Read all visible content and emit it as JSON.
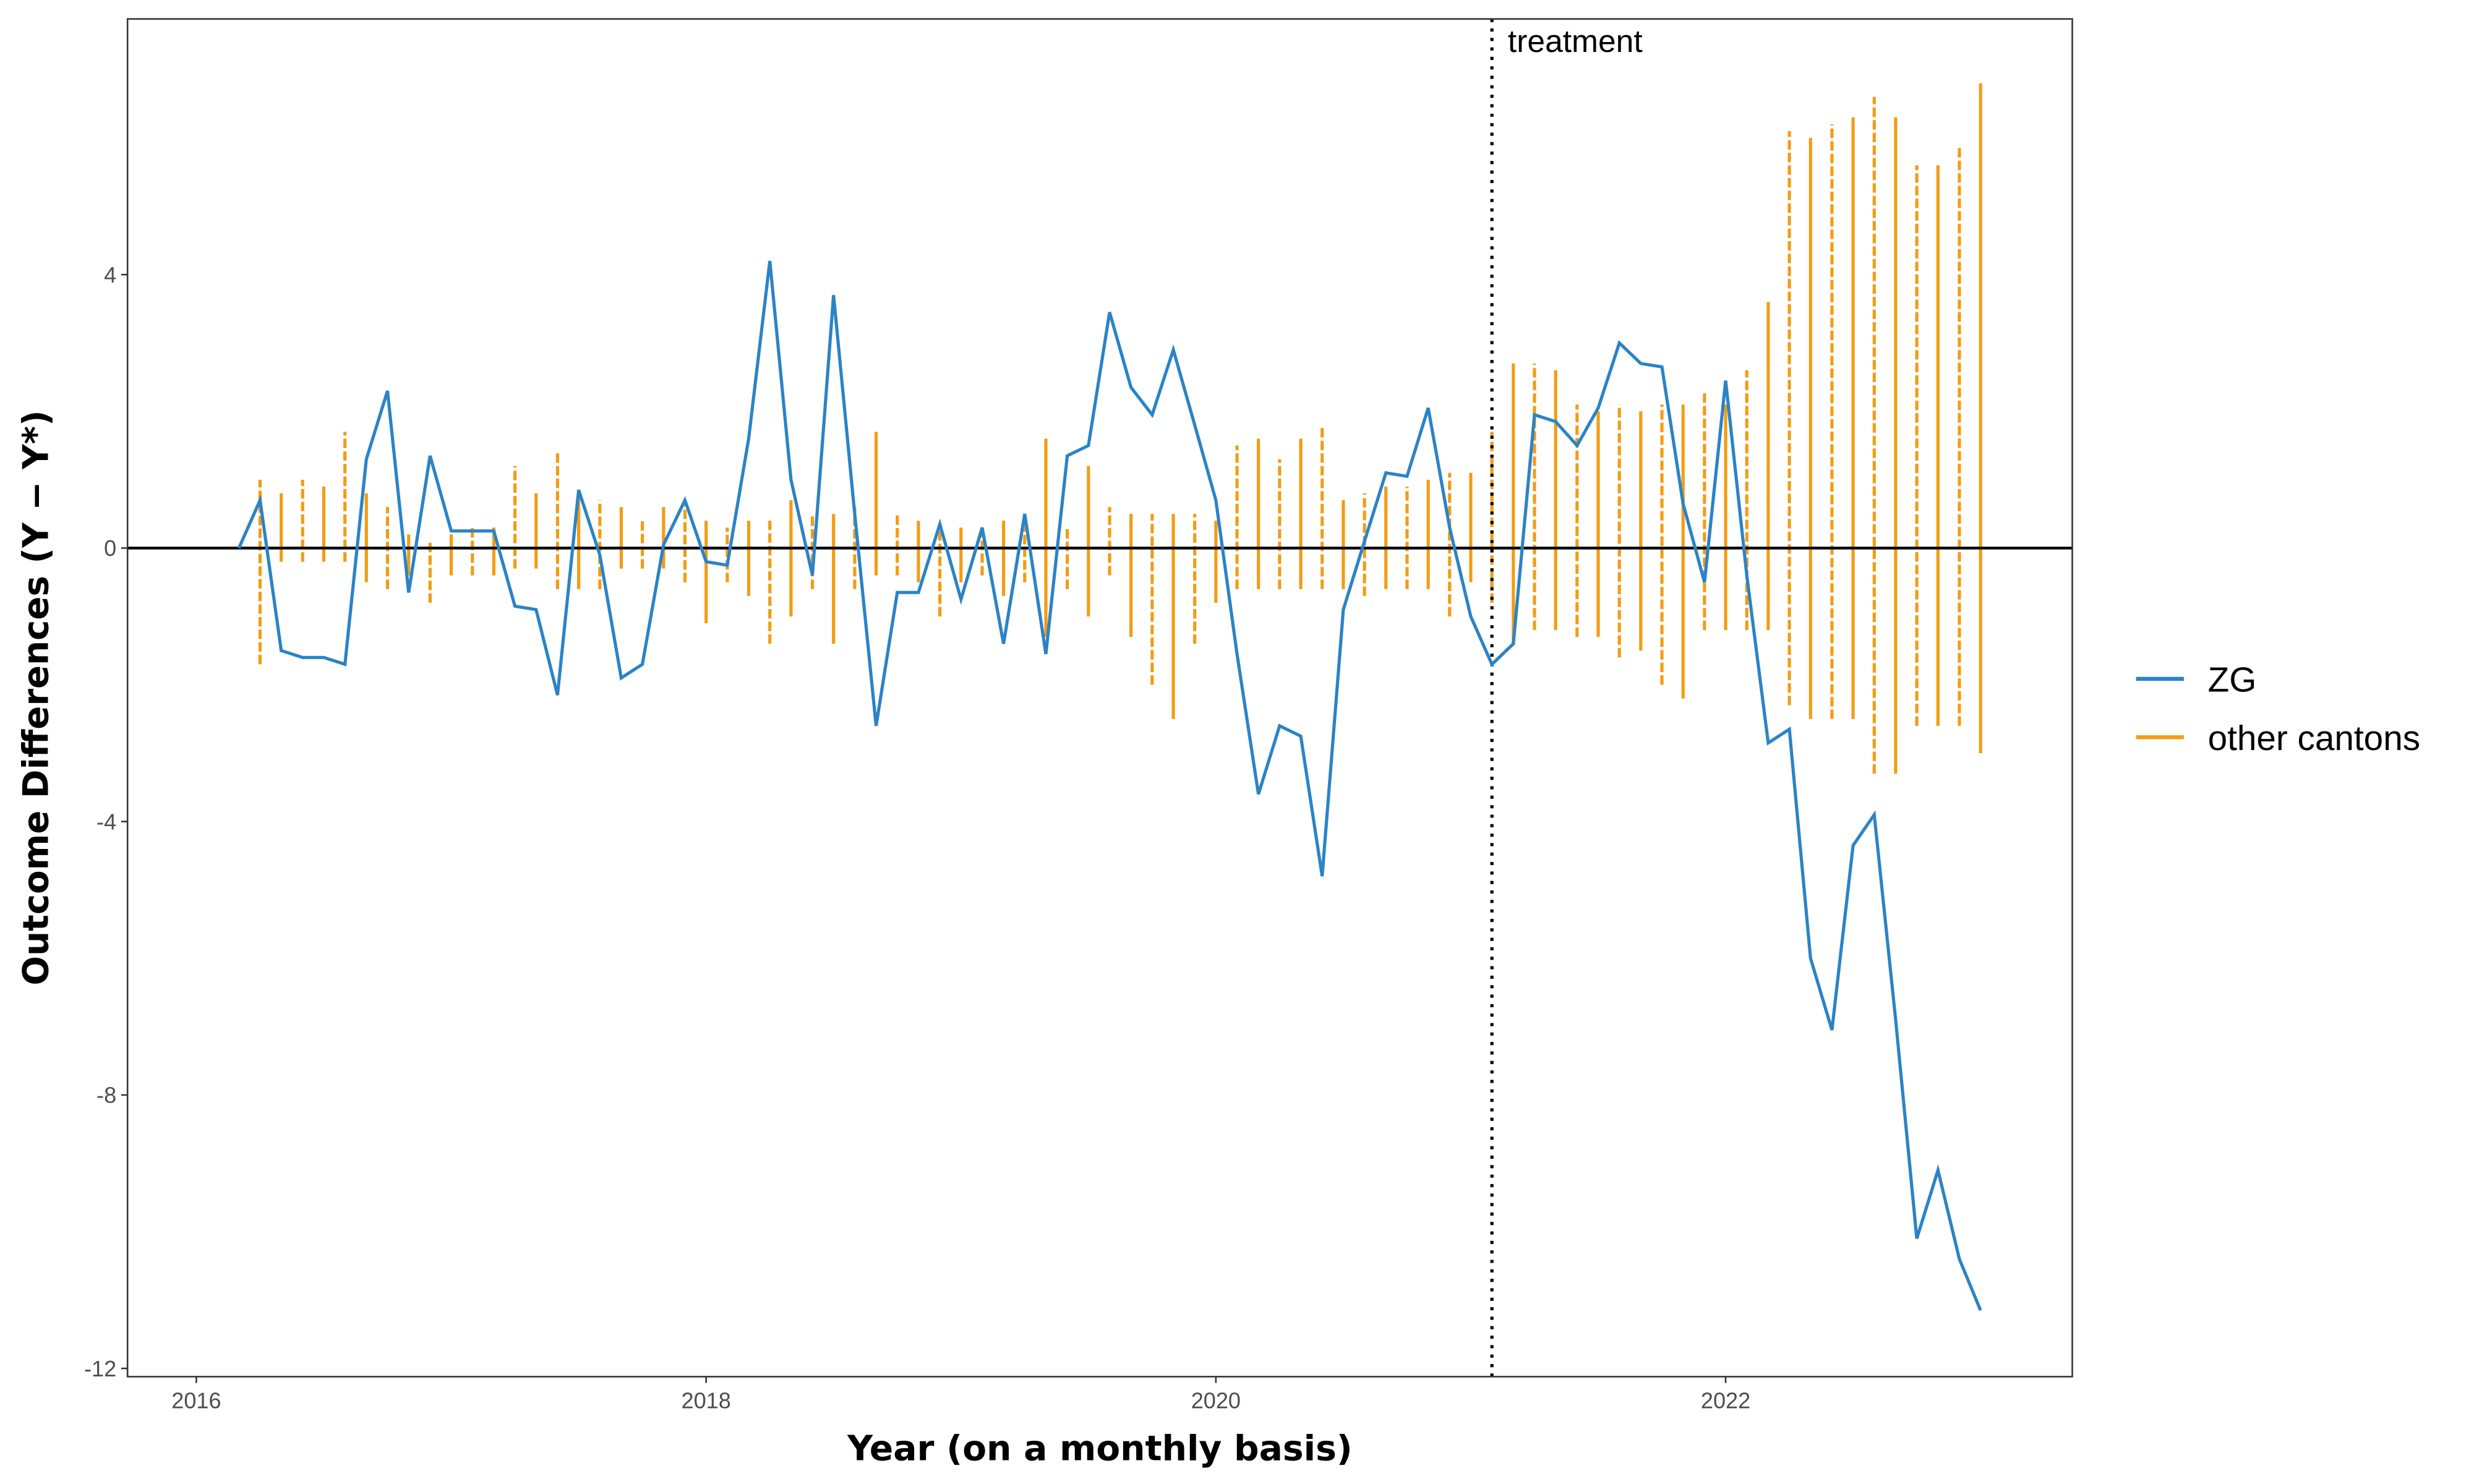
{
  "chart_data": {
    "type": "line",
    "x_label": "Year (on a monthly basis)",
    "y_label": "Outcome Differences (Y − Y*)",
    "xlim": [
      2015.73,
      2023.36
    ],
    "ylim": [
      -12.12,
      7.74
    ],
    "xticks": [
      2016,
      2018,
      2020,
      2022
    ],
    "yticks": [
      4,
      0,
      -4,
      -8,
      -12
    ],
    "hline": 0,
    "treatment": {
      "x": 2021.083,
      "label": "treatment"
    },
    "x": [
      2016.167,
      2016.25,
      2016.333,
      2016.417,
      2016.5,
      2016.583,
      2016.667,
      2016.75,
      2016.833,
      2016.917,
      2017,
      2017.083,
      2017.167,
      2017.25,
      2017.333,
      2017.417,
      2017.5,
      2017.583,
      2017.667,
      2017.75,
      2017.833,
      2017.917,
      2018,
      2018.083,
      2018.167,
      2018.25,
      2018.333,
      2018.417,
      2018.5,
      2018.583,
      2018.667,
      2018.75,
      2018.833,
      2018.917,
      2019,
      2019.083,
      2019.167,
      2019.25,
      2019.333,
      2019.417,
      2019.5,
      2019.583,
      2019.667,
      2019.75,
      2019.833,
      2019.917,
      2020,
      2020.083,
      2020.167,
      2020.25,
      2020.333,
      2020.417,
      2020.5,
      2020.583,
      2020.667,
      2020.75,
      2020.833,
      2020.917,
      2021,
      2021.083,
      2021.167,
      2021.25,
      2021.333,
      2021.417,
      2021.5,
      2021.583,
      2021.667,
      2021.75,
      2021.833,
      2021.917,
      2022,
      2022.083,
      2022.167,
      2022.25,
      2022.333,
      2022.417,
      2022.5,
      2022.583,
      2022.667,
      2022.75,
      2022.833,
      2022.917,
      2023
    ],
    "series": [
      {
        "name": "ZG",
        "color": "#2b83c6",
        "values": [
          0,
          0.7,
          -1.5,
          -1.6,
          -1.6,
          -1.7,
          1.3,
          2.3,
          -0.65,
          1.35,
          0.25,
          0.25,
          0.25,
          -0.85,
          -0.9,
          -2.15,
          0.85,
          -0.1,
          -1.9,
          -1.7,
          0.05,
          0.7,
          -0.2,
          -0.25,
          1.6,
          4.2,
          1.0,
          -0.4,
          3.7,
          0.5,
          -2.6,
          -0.65,
          -0.65,
          0.35,
          -0.75,
          0.3,
          -1.4,
          0.5,
          -1.55,
          1.35,
          1.5,
          3.45,
          2.35,
          1.95,
          2.9,
          1.8,
          0.7,
          -1.55,
          -3.6,
          -2.6,
          -2.75,
          -4.8,
          -0.9,
          0.1,
          1.1,
          1.05,
          2.05,
          0.3,
          -1.0,
          -1.7,
          -1.4,
          1.95,
          1.85,
          1.5,
          2.05,
          3.0,
          2.7,
          2.65,
          0.65,
          -0.5,
          2.45,
          -0.4,
          -2.85,
          -2.65,
          -6.0,
          -7.05,
          -4.35,
          -3.9,
          -6.9,
          -10.1,
          -9.1,
          -10.4,
          -11.15
        ]
      },
      {
        "name": "other cantons",
        "color": "#f39c12",
        "low": [
          null,
          -1.7,
          -0.2,
          -0.2,
          -0.2,
          -0.2,
          -0.5,
          -0.6,
          -0.4,
          -0.8,
          -0.4,
          -0.4,
          -0.4,
          -0.3,
          -0.3,
          -0.6,
          -0.6,
          -0.6,
          -0.3,
          -0.3,
          -0.3,
          -0.5,
          -1.1,
          -0.5,
          -0.7,
          -1.4,
          -1.0,
          -0.6,
          -1.4,
          -0.6,
          -0.4,
          -0.4,
          -0.5,
          -1.0,
          -0.5,
          -0.4,
          -0.7,
          -0.5,
          -1.3,
          -0.6,
          -1.0,
          -0.4,
          -1.3,
          -2.0,
          -2.5,
          -1.4,
          -0.8,
          -0.6,
          -0.6,
          -0.6,
          -0.6,
          -0.6,
          -0.6,
          -0.7,
          -0.6,
          -0.6,
          -0.6,
          -1.0,
          -0.5,
          -0.8,
          -1.4,
          -1.2,
          -1.2,
          -1.3,
          -1.3,
          -1.6,
          -1.5,
          -2.0,
          -2.2,
          -1.2,
          -1.2,
          -1.2,
          -1.2,
          -2.3,
          -2.5,
          -2.5,
          -2.5,
          -3.3,
          -3.3,
          -2.6,
          -2.6,
          -2.6,
          -3.0
        ],
        "high": [
          null,
          1.0,
          0.8,
          1.0,
          0.9,
          1.7,
          0.8,
          0.6,
          0.2,
          0.1,
          0.2,
          0.3,
          0.3,
          1.2,
          0.8,
          1.4,
          0.8,
          0.7,
          0.6,
          0.4,
          0.6,
          0.7,
          0.4,
          0.3,
          0.4,
          0.4,
          0.7,
          0.5,
          0.5,
          0.6,
          1.7,
          0.5,
          0.4,
          0.3,
          0.3,
          0.3,
          0.4,
          0.4,
          1.6,
          0.3,
          1.2,
          0.6,
          0.5,
          0.5,
          0.5,
          0.5,
          0.4,
          1.5,
          1.6,
          1.3,
          1.6,
          1.8,
          0.7,
          0.8,
          0.9,
          0.9,
          1.0,
          1.1,
          1.1,
          1.7,
          2.7,
          2.7,
          2.6,
          2.1,
          2.0,
          2.1,
          2.0,
          2.1,
          2.1,
          2.3,
          2.1,
          2.6,
          3.6,
          6.1,
          6.0,
          6.2,
          6.3,
          6.6,
          6.3,
          5.6,
          5.6,
          5.9,
          6.8
        ]
      }
    ]
  }
}
